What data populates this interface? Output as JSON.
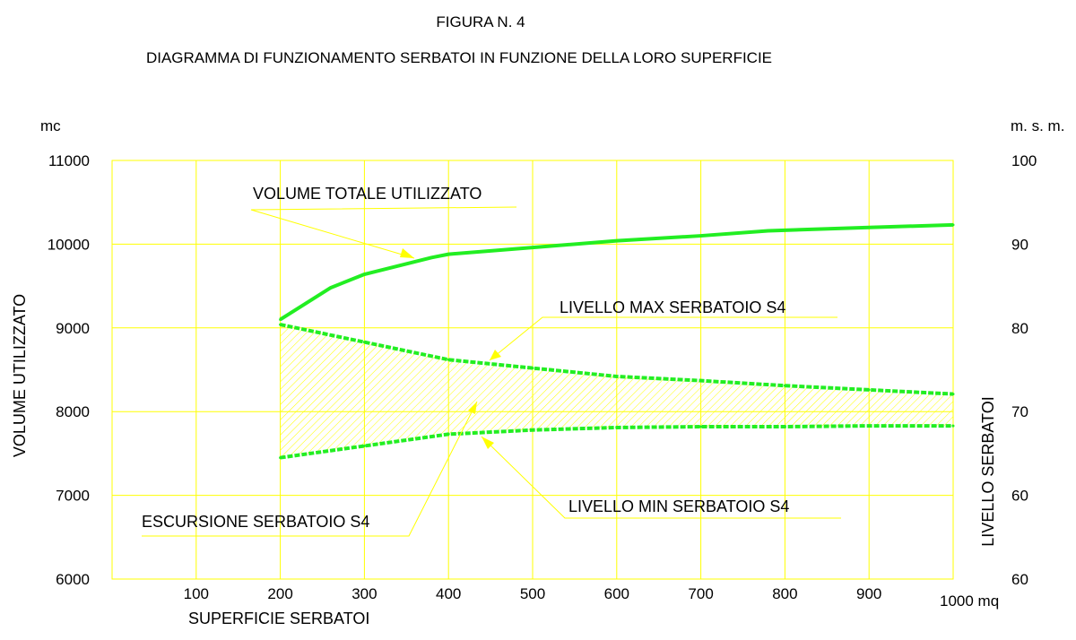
{
  "figure_label": "FIGURA N. 4",
  "chart_data": {
    "type": "line",
    "title": "DIAGRAMMA DI FUNZIONAMENTO SERBATOI IN FUNZIONE DELLA LORO SUPERFICIE",
    "xlabel": "SUPERFICIE SERBATOI",
    "x_unit": "1000 mq",
    "ylabel_left": "VOLUME UTILIZZATO",
    "ylabel_left_unit": "mc",
    "ylabel_right": "LIVELLO SERBATOI",
    "ylabel_right_unit": "m. s. m.",
    "xlim": [
      0,
      1000
    ],
    "ylim": [
      6000,
      11000
    ],
    "x_ticks": [
      "100",
      "200",
      "300",
      "400",
      "500",
      "600",
      "700",
      "800",
      "900"
    ],
    "x_tick_values": [
      100,
      200,
      300,
      400,
      500,
      600,
      700,
      800,
      900
    ],
    "y_left_ticks": [
      "6000",
      "7000",
      "8000",
      "9000",
      "10000",
      "11000"
    ],
    "y_left_tick_values": [
      6000,
      7000,
      8000,
      9000,
      10000,
      11000
    ],
    "y_right_ticks": [
      "60",
      "60",
      "70",
      "80",
      "90",
      "100"
    ],
    "grid": true,
    "grid_color": "#ffff00",
    "series_color": "#22ee22",
    "annotation_color": "#ffff00",
    "series": [
      {
        "name": "VOLUME TOTALE UTILIZZATO",
        "style": "solid",
        "x": [
          200,
          260,
          300,
          380,
          400,
          500,
          600,
          700,
          780,
          900,
          1000
        ],
        "y": [
          9100,
          9480,
          9640,
          9840,
          9880,
          9960,
          10040,
          10100,
          10160,
          10200,
          10230
        ]
      },
      {
        "name": "LIVELLO MAX SERBATOIO S4",
        "style": "dashed",
        "x": [
          200,
          300,
          400,
          500,
          600,
          700,
          800,
          900,
          1000
        ],
        "y": [
          9040,
          8830,
          8620,
          8520,
          8420,
          8370,
          8310,
          8260,
          8210
        ]
      },
      {
        "name": "LIVELLO MIN SERBATOIO S4",
        "style": "dashed",
        "x": [
          200,
          300,
          400,
          500,
          600,
          700,
          800,
          900,
          1000
        ],
        "y": [
          7450,
          7590,
          7730,
          7780,
          7810,
          7820,
          7820,
          7830,
          7830
        ]
      }
    ],
    "band": {
      "name": "ESCURSIONE SERBATOIO S4",
      "between": [
        1,
        2
      ]
    }
  }
}
